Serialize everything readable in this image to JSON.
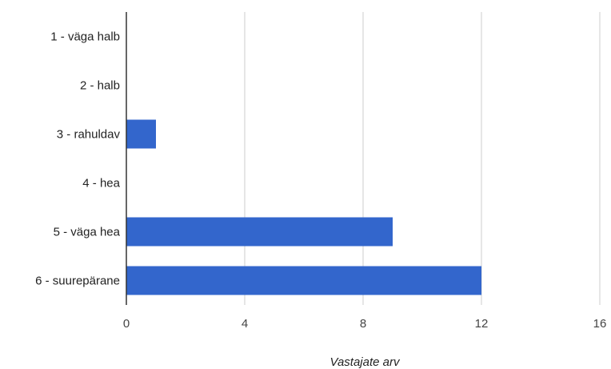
{
  "chart_data": {
    "type": "bar",
    "orientation": "horizontal",
    "categories": [
      "1 - väga halb",
      "2 - halb",
      "3 - rahuldav",
      "4 - hea",
      "5 - väga hea",
      "6 - suurepärane"
    ],
    "values": [
      0,
      0,
      1,
      0,
      9,
      12
    ],
    "xlabel": "Vastajate arv",
    "ylabel": "",
    "title": "",
    "xlim": [
      0,
      16
    ],
    "xticks": [
      0,
      4,
      8,
      12,
      16
    ],
    "grid": true,
    "legend": "none",
    "bar_color": "#3366cc",
    "grid_color": "#cccccc",
    "axis_color": "#333333"
  }
}
